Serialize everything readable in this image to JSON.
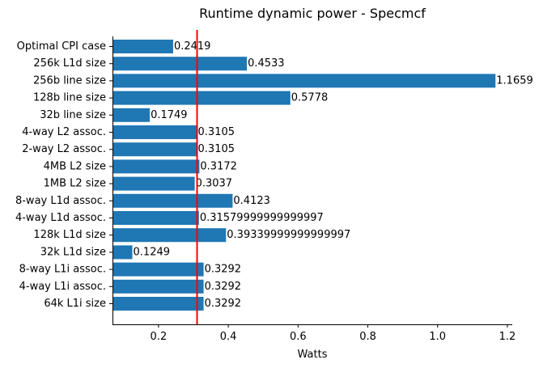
{
  "chart_data": {
    "type": "bar",
    "orientation": "horizontal",
    "title": "Runtime dynamic power - Specmcf",
    "xlabel": "Watts",
    "ylabel": "",
    "xlim": [
      0.068,
      1.214
    ],
    "xticks": [
      0.2,
      0.4,
      0.6,
      0.8,
      1.0,
      1.2
    ],
    "xtick_labels": [
      "0.2",
      "0.4",
      "0.6",
      "0.8",
      "1.0",
      "1.2"
    ],
    "bar_color": "#1f77b4",
    "reference_line": {
      "value": 0.3105,
      "color": "#ff0000"
    },
    "grid": false,
    "legend": "none",
    "categories": [
      "Optimal CPI case",
      "256k L1d size",
      "256b line size",
      "128b line size",
      "32b line size",
      "4-way L2 assoc.",
      "2-way L2 assoc.",
      "4MB L2 size",
      "1MB L2 size",
      "8-way L1d assoc.",
      "4-way L1d assoc.",
      "128k L1d size",
      "32k L1d size",
      "8-way L1i assoc.",
      "4-way L1i assoc.",
      "64k L1i size"
    ],
    "values": [
      0.2419,
      0.4533,
      1.1659,
      0.5778,
      0.1749,
      0.3105,
      0.3105,
      0.3172,
      0.3037,
      0.4123,
      0.31579999999999997,
      0.39339999999999997,
      0.1249,
      0.3292,
      0.3292,
      0.3292
    ],
    "value_labels": [
      "0.2419",
      "0.4533",
      "1.1659",
      "0.5778",
      "0.1749",
      "0.3105",
      "0.3105",
      "0.3172",
      "0.3037",
      "0.4123",
      "0.31579999999999997",
      "0.39339999999999997",
      "0.1249",
      "0.3292",
      "0.3292",
      "0.3292"
    ]
  }
}
